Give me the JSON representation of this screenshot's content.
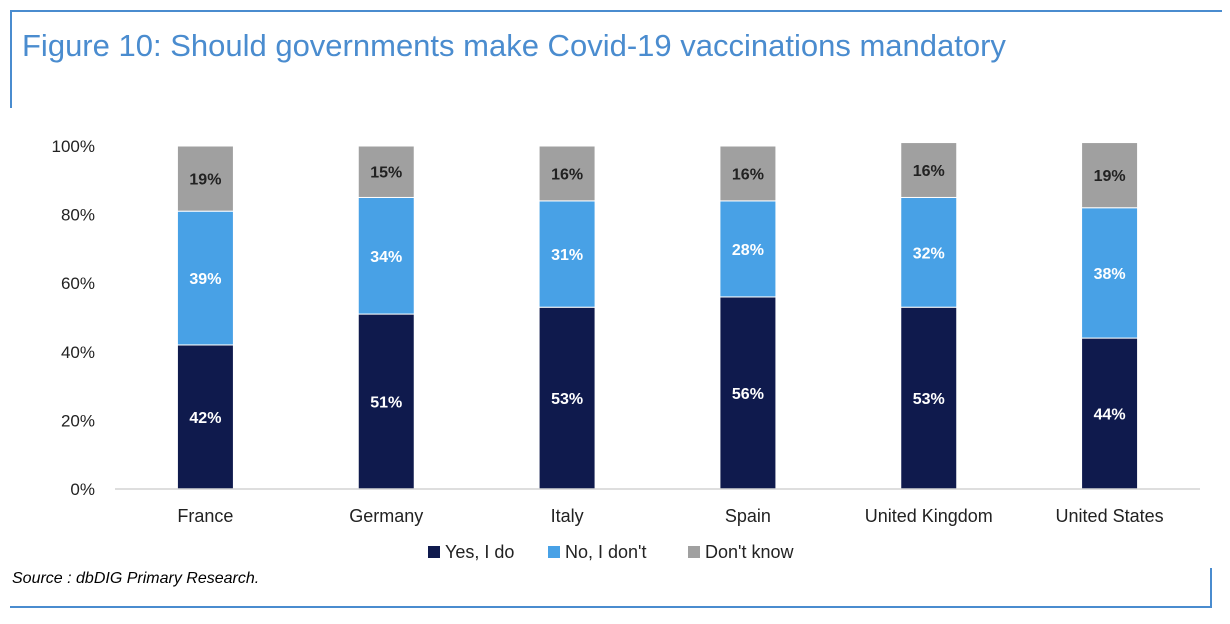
{
  "title": "Figure 10: Should governments make Covid-19 vaccinations mandatory",
  "source": "Source : dbDIG Primary Research.",
  "colors": {
    "accent": "#4a8ccf",
    "yes": "#0f1a4d",
    "no": "#48a1e6",
    "dontknow": "#a0a0a0"
  },
  "chart_data": {
    "type": "bar",
    "stacked": true,
    "categories": [
      "France",
      "Germany",
      "Italy",
      "Spain",
      "United Kingdom",
      "United States"
    ],
    "series": [
      {
        "name": "Yes, I do",
        "color": "#0f1a4d",
        "values": [
          42,
          51,
          53,
          56,
          53,
          44
        ],
        "labels": [
          "42%",
          "51%",
          "53%",
          "56%",
          "53%",
          "44%"
        ]
      },
      {
        "name": "No, I don't",
        "color": "#48a1e6",
        "values": [
          39,
          34,
          31,
          28,
          32,
          38
        ],
        "labels": [
          "39%",
          "34%",
          "31%",
          "28%",
          "32%",
          "38%"
        ]
      },
      {
        "name": "Don't know",
        "color": "#a0a0a0",
        "values": [
          19,
          15,
          16,
          16,
          16,
          19
        ],
        "labels": [
          "19%",
          "15%",
          "16%",
          "16%",
          "16%",
          "19%"
        ]
      }
    ],
    "yticks": [
      0,
      20,
      40,
      60,
      80,
      100
    ],
    "ytick_labels": [
      "0%",
      "20%",
      "40%",
      "60%",
      "80%",
      "100%"
    ],
    "ylim": [
      0,
      100
    ],
    "xlabel": "",
    "ylabel": "",
    "grid": false,
    "legend_position": "bottom"
  }
}
